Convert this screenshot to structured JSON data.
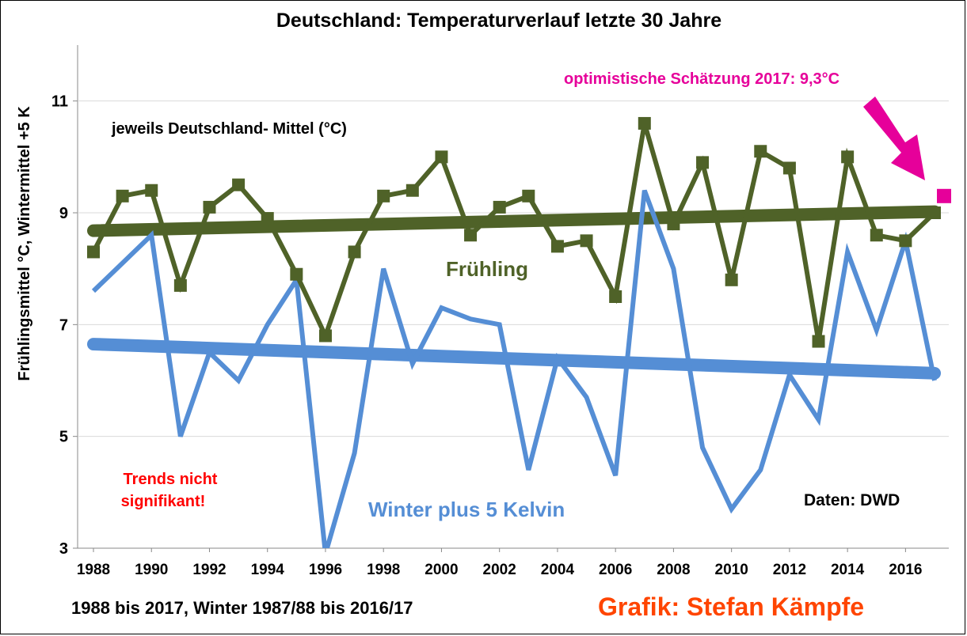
{
  "chart_data": {
    "type": "line",
    "title": "Deutschland: Temperaturverlauf letzte 30 Jahre",
    "ylabel": "Frühlingsmittel °C, Wintermittel +5 K",
    "ylim": [
      3,
      12
    ],
    "yticks": [
      3,
      5,
      7,
      9,
      11
    ],
    "xticks": [
      "1988",
      "1990",
      "1992",
      "1994",
      "1996",
      "1998",
      "2000",
      "2002",
      "2004",
      "2006",
      "2008",
      "2010",
      "2012",
      "2014",
      "2016"
    ],
    "x": [
      1988,
      1989,
      1990,
      1991,
      1992,
      1993,
      1994,
      1995,
      1996,
      1997,
      1998,
      1999,
      2000,
      2001,
      2002,
      2003,
      2004,
      2005,
      2006,
      2007,
      2008,
      2009,
      2010,
      2011,
      2012,
      2013,
      2014,
      2015,
      2016,
      2017
    ],
    "grid": "horizontal",
    "series": [
      {
        "name": "Frühling",
        "color": "#4f6228",
        "marker": "square",
        "values": [
          8.3,
          9.3,
          9.4,
          7.7,
          9.1,
          9.5,
          8.9,
          7.9,
          6.8,
          8.3,
          9.3,
          9.4,
          10.0,
          8.6,
          9.1,
          9.3,
          8.4,
          8.5,
          7.5,
          10.6,
          8.8,
          9.9,
          7.8,
          10.1,
          9.8,
          6.7,
          10.0,
          8.6,
          8.5,
          9.0
        ],
        "trend": [
          8.68,
          9.02
        ]
      },
      {
        "name": "Winter plus 5 Kelvin",
        "color": "#558ed5",
        "marker": "none",
        "values": [
          7.6,
          8.1,
          8.6,
          5.0,
          6.5,
          6.0,
          7.0,
          7.8,
          2.9,
          4.7,
          8.0,
          6.3,
          7.3,
          7.1,
          7.0,
          4.4,
          6.4,
          5.7,
          4.3,
          9.4,
          8.0,
          4.8,
          3.7,
          4.4,
          6.1,
          5.3,
          8.3,
          6.9,
          8.5,
          6.0
        ],
        "trend": [
          6.65,
          6.13
        ]
      }
    ],
    "estimate": {
      "x": 2017,
      "value": 9.3,
      "color": "#e6009a",
      "label": "optimistische Schätzung 2017: 9,3°C"
    },
    "annotations": {
      "mittel": "jeweils Deutschland- Mittel (°C)",
      "fruehling": "Frühling",
      "winter": "Winter plus 5 Kelvin",
      "trends": [
        "Trends nicht",
        "signifikant!"
      ],
      "daten": "Daten: DWD",
      "zeitraum": "1988 bis 2017, Winter 1987/88 bis 2016/17",
      "grafik": "Grafik: Stefan Kämpfe"
    },
    "colors": {
      "trends_text": "#ff0000",
      "grafik_text": "#ff4500"
    }
  }
}
